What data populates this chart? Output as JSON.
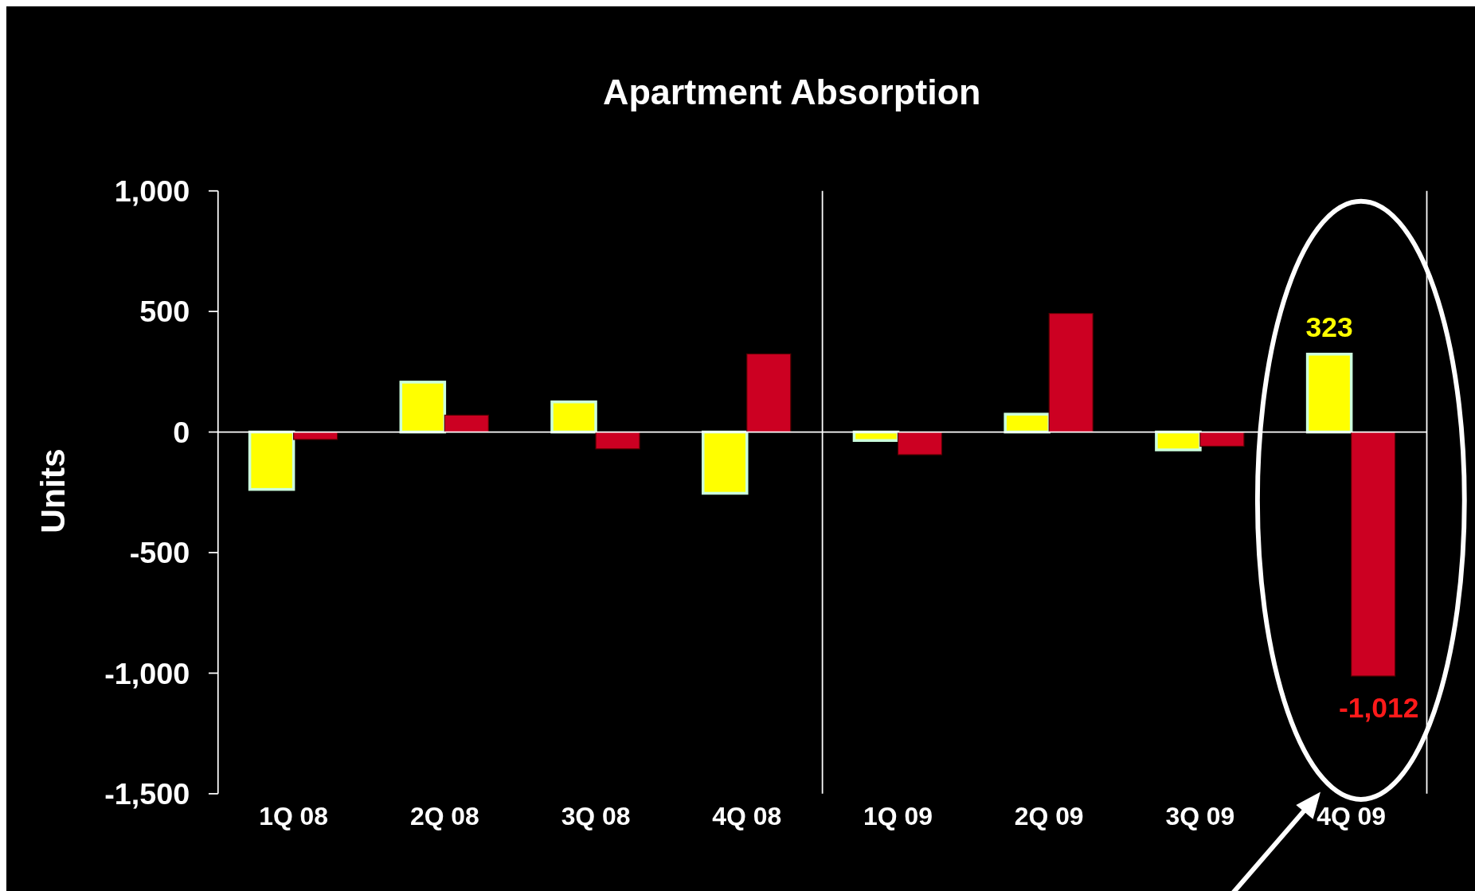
{
  "chart_data": {
    "type": "bar",
    "title": "Apartment Absorption",
    "ylabel": "Units",
    "categories": [
      "1Q 08",
      "2Q 08",
      "3Q 08",
      "4Q 08",
      "1Q 09",
      "2Q 09",
      "3Q 09",
      "4Q 09"
    ],
    "series": [
      {
        "color": "#ffff00",
        "values": [
          -238,
          207,
          125,
          -254,
          -35,
          74,
          -74,
          323
        ],
        "value_labels": [
          null,
          null,
          null,
          null,
          null,
          null,
          null,
          "323"
        ]
      },
      {
        "color": "#cc0022",
        "values": [
          -31,
          70,
          -70,
          324,
          -94,
          492,
          -59,
          -1012
        ],
        "value_labels": [
          null,
          null,
          null,
          null,
          null,
          null,
          null,
          "-1,012"
        ]
      }
    ],
    "ylim": [
      -1500,
      1000
    ],
    "yticks": [
      {
        "value": -1500,
        "label": "-1,500"
      },
      {
        "value": -1000,
        "label": "-1,000"
      },
      -500,
      0,
      500,
      {
        "value": 1000,
        "label": "1,000"
      }
    ]
  }
}
